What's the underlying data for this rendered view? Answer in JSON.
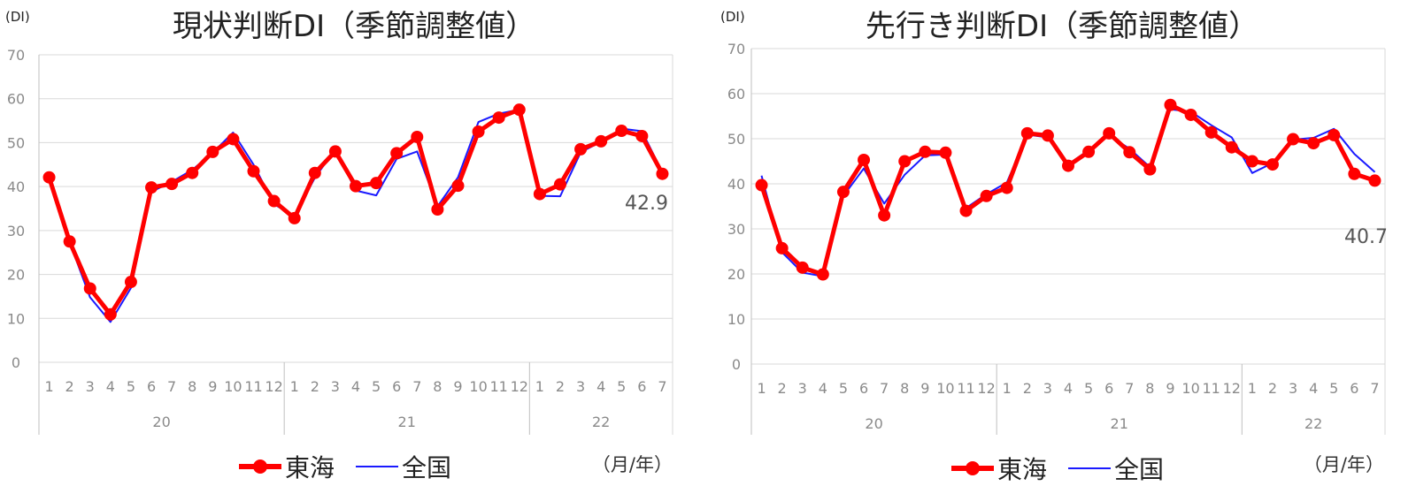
{
  "colors": {
    "tokai": "#ff0000",
    "national": "#1a1aff",
    "grid": "#d9d9d9",
    "axis": "#bfbfbf"
  },
  "legend": {
    "tokai": "東海",
    "national": "全国"
  },
  "unit_label": "(DI)",
  "month_year_label": "（月/年）",
  "chart_data": [
    {
      "type": "line",
      "title": "現状判断DI（季節調整値）",
      "ylabel": "(DI)",
      "ylim": [
        0,
        70
      ],
      "yticks": [
        "0",
        "10",
        "20",
        "30",
        "40",
        "50",
        "60",
        "70"
      ],
      "categories": [
        "1",
        "2",
        "3",
        "4",
        "5",
        "6",
        "7",
        "8",
        "9",
        "10",
        "11",
        "12",
        "1",
        "2",
        "3",
        "4",
        "5",
        "6",
        "7",
        "8",
        "9",
        "10",
        "11",
        "12",
        "1",
        "2",
        "3",
        "4",
        "5",
        "6",
        "7"
      ],
      "year_groups": [
        {
          "label": "20",
          "count": 12
        },
        {
          "label": "21",
          "count": 12
        },
        {
          "label": "22",
          "count": 7
        }
      ],
      "last_value_label": "42.9",
      "series": [
        {
          "name": "東海",
          "values": [
            42.1,
            27.5,
            16.8,
            10.9,
            18.3,
            39.8,
            40.6,
            43.1,
            47.9,
            50.8,
            43.5,
            36.7,
            32.8,
            43.1,
            48.0,
            40.1,
            40.8,
            47.6,
            51.3,
            34.8,
            40.2,
            52.5,
            55.7,
            57.5,
            38.3,
            40.5,
            48.5,
            50.3,
            52.7,
            51.5,
            42.9
          ]
        },
        {
          "name": "全国",
          "values": [
            41.9,
            27.4,
            14.8,
            9.2,
            16.9,
            38.8,
            41.1,
            43.8,
            47.7,
            52.3,
            45.0,
            36.0,
            33.2,
            42.0,
            48.5,
            39.1,
            38.0,
            46.3,
            48.0,
            35.5,
            42.1,
            54.7,
            56.6,
            57.5,
            37.9,
            37.8,
            47.8,
            50.2,
            53.2,
            52.6,
            43.2
          ]
        }
      ]
    },
    {
      "type": "line",
      "title": "先行き判断DI（季節調整値）",
      "ylabel": "(DI)",
      "ylim": [
        0,
        70
      ],
      "yticks": [
        "0",
        "10",
        "20",
        "30",
        "40",
        "50",
        "60",
        "70"
      ],
      "categories": [
        "1",
        "2",
        "3",
        "4",
        "5",
        "6",
        "7",
        "8",
        "9",
        "10",
        "11",
        "12",
        "1",
        "2",
        "3",
        "4",
        "5",
        "6",
        "7",
        "8",
        "9",
        "10",
        "11",
        "12",
        "1",
        "2",
        "3",
        "4",
        "5",
        "6",
        "7"
      ],
      "year_groups": [
        {
          "label": "20",
          "count": 12
        },
        {
          "label": "21",
          "count": 12
        },
        {
          "label": "22",
          "count": 7
        }
      ],
      "last_value_label": "40.7",
      "series": [
        {
          "name": "東海",
          "values": [
            39.7,
            25.7,
            21.4,
            19.9,
            38.2,
            45.3,
            33.0,
            45.0,
            47.1,
            46.9,
            34.0,
            37.3,
            39.1,
            51.2,
            50.7,
            44.0,
            47.1,
            51.2,
            47.0,
            43.2,
            57.5,
            55.3,
            51.4,
            48.1,
            45.0,
            44.3,
            49.9,
            49.0,
            50.8,
            42.2,
            40.7
          ]
        },
        {
          "name": "全国",
          "values": [
            41.8,
            24.8,
            20.3,
            19.5,
            37.3,
            43.4,
            35.6,
            42.0,
            46.3,
            46.5,
            34.6,
            37.7,
            40.3,
            50.9,
            50.3,
            44.3,
            47.5,
            50.7,
            47.8,
            43.7,
            56.5,
            56.0,
            53.0,
            50.3,
            42.4,
            44.6,
            49.8,
            50.2,
            52.2,
            46.6,
            42.6
          ]
        }
      ]
    }
  ]
}
